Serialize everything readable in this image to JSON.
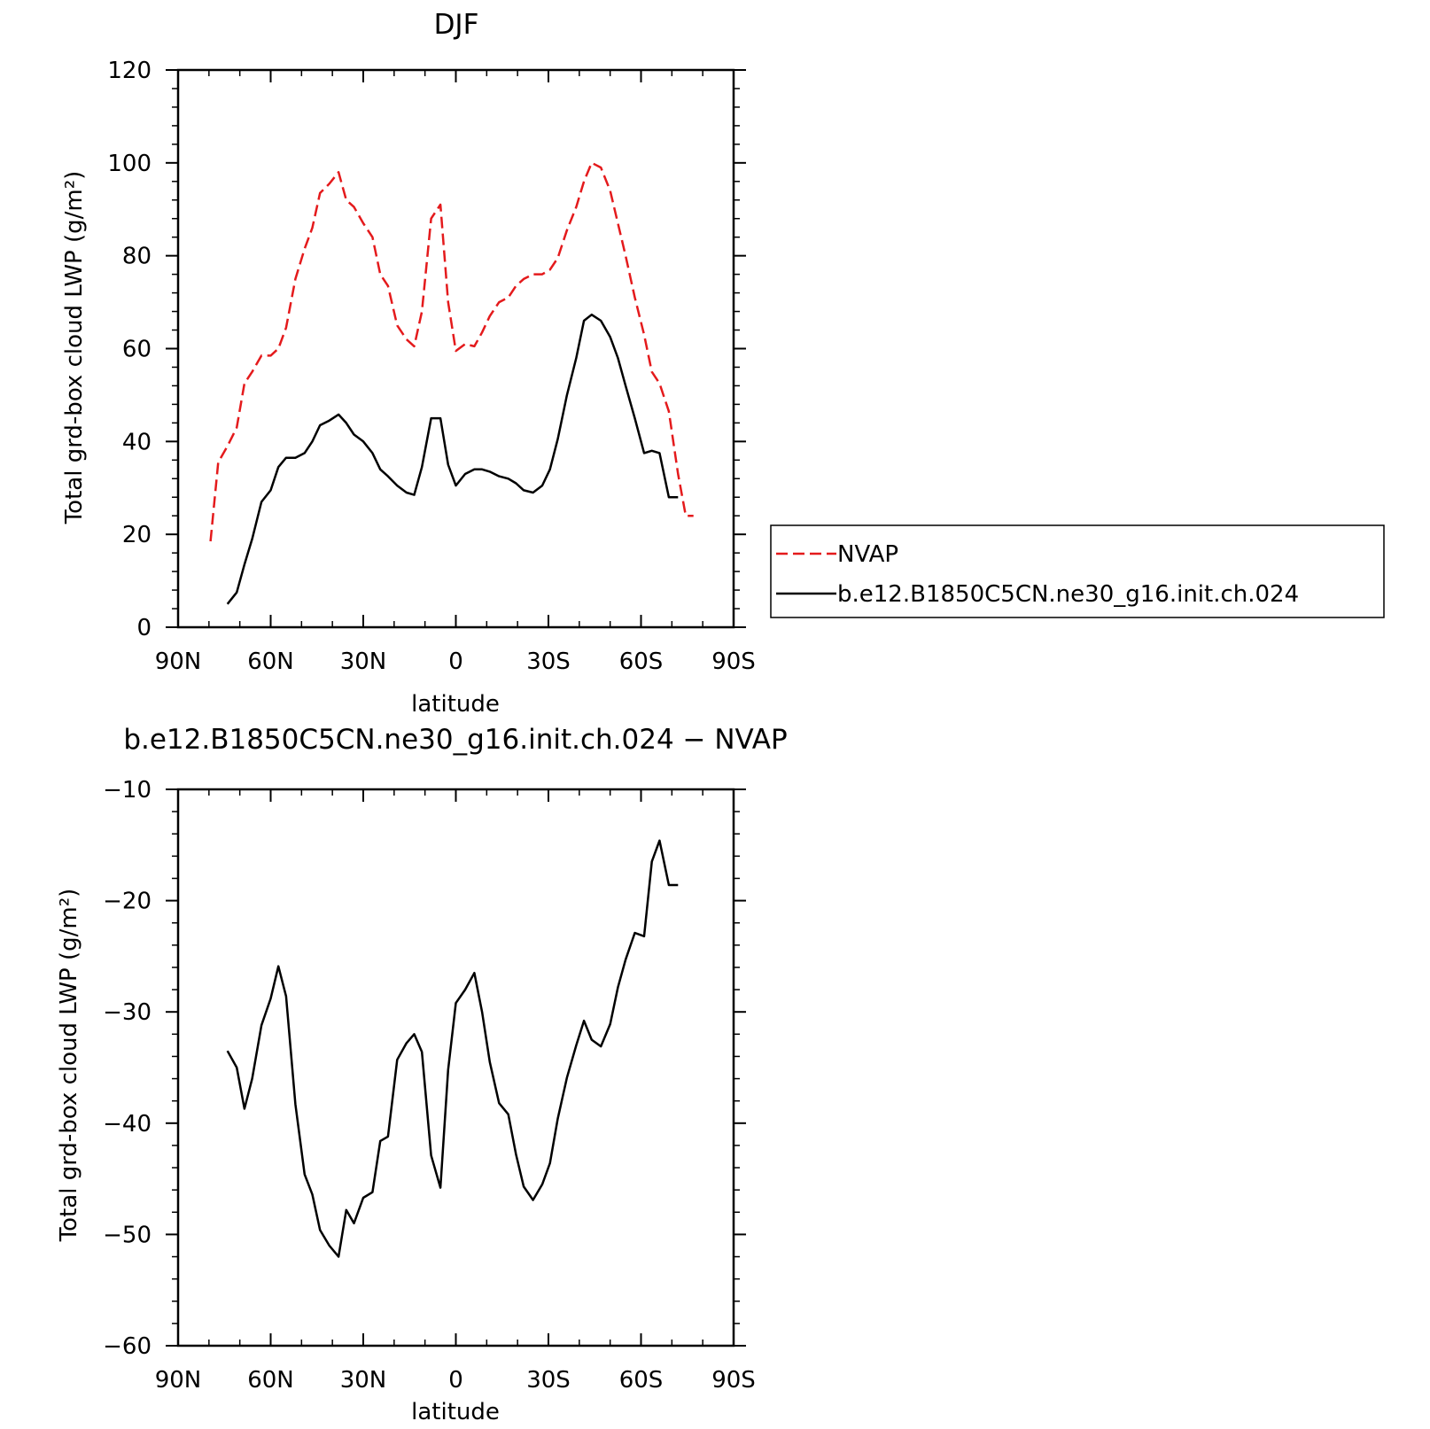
{
  "colors": {
    "nvap": "#e41a1c",
    "model": "#000000",
    "axis": "#000000"
  },
  "chart_data": [
    {
      "type": "line",
      "title": "DJF",
      "xlabel": "latitude",
      "ylabel": "Total grd-box cloud LWP (g/m²)",
      "xlim": [
        90,
        -90
      ],
      "ylim": [
        0,
        120
      ],
      "x_tick_values": [
        90,
        60,
        30,
        0,
        -30,
        -60,
        -90
      ],
      "x_tick_labels": [
        "90N",
        "60N",
        "30N",
        "0",
        "30S",
        "60S",
        "90S"
      ],
      "y_tick_values": [
        0,
        20,
        40,
        60,
        80,
        100,
        120
      ],
      "y_tick_labels": [
        "0",
        "20",
        "40",
        "60",
        "80",
        "100",
        "120"
      ],
      "grid": false,
      "legend_position": "outside-right",
      "series": [
        {
          "name": "NVAP",
          "style": "dashed",
          "color": "#e41a1c",
          "x": [
            79.5,
            77,
            74,
            71,
            68.5,
            66,
            63,
            60,
            57.5,
            55,
            52,
            49,
            46.5,
            44,
            41,
            38,
            35.5,
            33,
            30,
            27,
            24.5,
            22,
            19,
            16,
            13.5,
            11,
            8,
            5,
            2.5,
            0,
            -3,
            -6,
            -8.5,
            -11,
            -14,
            -17,
            -19.5,
            -22,
            -25,
            -28,
            -30.5,
            -33,
            -36,
            -39,
            -41.5,
            -44,
            -47,
            -50,
            -52.5,
            -55,
            -58,
            -61,
            -63.5,
            -66,
            -69,
            -72,
            -74.5,
            -77
          ],
          "y": [
            18.5,
            35.5,
            39,
            43,
            52.5,
            55,
            58.5,
            58.5,
            60,
            64.5,
            75,
            81.5,
            86,
            93.5,
            95.5,
            98,
            92,
            90.5,
            87,
            84,
            76,
            73.5,
            65,
            62,
            60.5,
            68,
            88,
            91,
            70,
            59.5,
            61,
            60.5,
            63.5,
            67,
            70,
            71,
            73.5,
            75,
            76,
            76,
            77,
            79.5,
            85.5,
            90.5,
            96,
            100,
            99,
            94,
            87,
            80,
            71,
            63,
            55,
            52.5,
            46.5,
            33,
            24,
            24
          ]
        },
        {
          "name": "b.e12.B1850C5CN.ne30_g16.init.ch.024",
          "style": "solid",
          "color": "#000000",
          "x": [
            74,
            71,
            68.5,
            66,
            63,
            60,
            57.5,
            55,
            52,
            49,
            46.5,
            44,
            41,
            38,
            35.5,
            33,
            30,
            27,
            24.5,
            22,
            19,
            16,
            13.5,
            11,
            8,
            5,
            2.5,
            0,
            -3,
            -6,
            -8.5,
            -11,
            -14,
            -17,
            -19.5,
            -22,
            -25,
            -28,
            -30.5,
            -33,
            -36,
            -39,
            -41.5,
            -44,
            -47,
            -50,
            -52.5,
            -55,
            -58,
            -61,
            -63.5,
            -66,
            -69,
            -72
          ],
          "y": [
            5,
            7.5,
            13.5,
            19,
            27,
            29.5,
            34.5,
            36.5,
            36.5,
            37.5,
            40,
            43.5,
            44.5,
            45.8,
            44,
            41.5,
            40,
            37.5,
            34,
            32.5,
            30.5,
            29,
            28.5,
            34.5,
            45,
            45,
            35,
            30.5,
            33,
            34,
            34,
            33.5,
            32.5,
            32,
            31,
            29.5,
            29,
            30.5,
            34,
            40.5,
            50,
            58,
            66,
            67.3,
            66,
            62.5,
            58,
            52,
            45,
            37.5,
            38,
            37.5,
            28,
            28
          ]
        }
      ]
    },
    {
      "type": "line",
      "title": "b.e12.B1850C5CN.ne30_g16.init.ch.024 − NVAP",
      "xlabel": "latitude",
      "ylabel": "Total grd-box cloud LWP (g/m²)",
      "xlim": [
        90,
        -90
      ],
      "ylim": [
        -60,
        -10
      ],
      "x_tick_values": [
        90,
        60,
        30,
        0,
        -30,
        -60,
        -90
      ],
      "x_tick_labels": [
        "90N",
        "60N",
        "30N",
        "0",
        "30S",
        "60S",
        "90S"
      ],
      "y_tick_values": [
        -60,
        -50,
        -40,
        -30,
        -20,
        -10
      ],
      "y_tick_labels": [
        "−60",
        "−50",
        "−40",
        "−30",
        "−20",
        "−10"
      ],
      "grid": false,
      "series": [
        {
          "style": "solid",
          "color": "#000000",
          "x": [
            74,
            71,
            68.5,
            66,
            63,
            60,
            57.5,
            55,
            52,
            49,
            46.5,
            44,
            41,
            38,
            35.5,
            33,
            30,
            27,
            24.5,
            22,
            19,
            16,
            13.5,
            11,
            8,
            5,
            2.5,
            0,
            -3,
            -6,
            -8.5,
            -11,
            -14,
            -17,
            -19.5,
            -22,
            -25,
            -28,
            -30.5,
            -33,
            -36,
            -39,
            -41.5,
            -44,
            -47,
            -50,
            -52.5,
            -55,
            -58,
            -61,
            -63.5,
            -66,
            -69,
            -72
          ],
          "y": [
            -33.5,
            -35,
            -38.7,
            -36,
            -31.2,
            -28.8,
            -25.9,
            -28.6,
            -38.3,
            -44.6,
            -46.4,
            -49.6,
            -51,
            -52,
            -47.8,
            -49,
            -46.7,
            -46.2,
            -41.6,
            -41.2,
            -34.3,
            -32.8,
            -32,
            -33.6,
            -42.9,
            -45.8,
            -35.2,
            -29.2,
            -28,
            -26.5,
            -30,
            -34.5,
            -38.2,
            -39.2,
            -42.8,
            -45.7,
            -46.9,
            -45.5,
            -43.6,
            -39.6,
            -35.9,
            -33,
            -30.8,
            -32.5,
            -33.1,
            -31.1,
            -27.8,
            -25.3,
            -22.9,
            -23.2,
            -16.5,
            -14.6,
            -18.6,
            -18.6
          ]
        }
      ]
    }
  ],
  "legend": {
    "items": [
      {
        "label": "NVAP",
        "style": "dashed",
        "color": "#e41a1c"
      },
      {
        "label": "b.e12.B1850C5CN.ne30_g16.init.ch.024",
        "style": "solid",
        "color": "#000000"
      }
    ]
  }
}
